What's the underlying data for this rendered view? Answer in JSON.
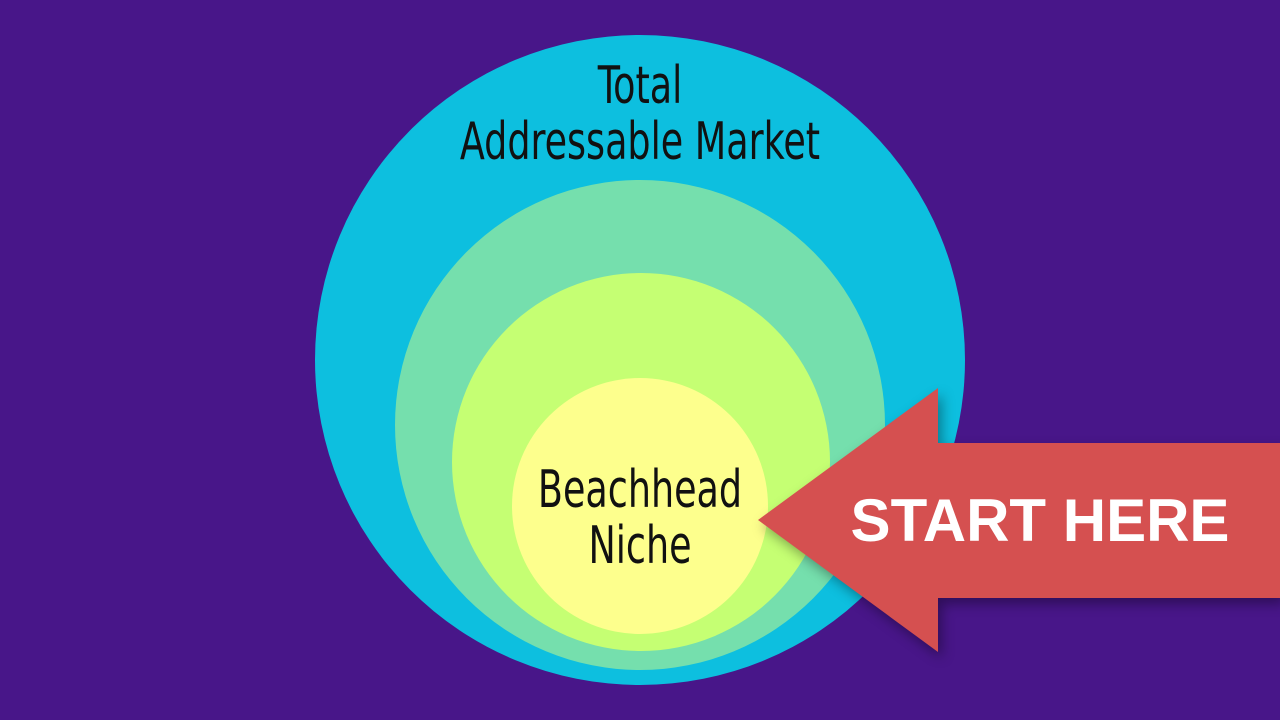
{
  "diagram": {
    "background_color": "#481689",
    "rings": [
      {
        "label": "Total Addressable Market",
        "lines": [
          "Total",
          "Addressable Market"
        ],
        "color": "#0dbfdf"
      },
      {
        "label": "",
        "color": "#75dfad"
      },
      {
        "label": "",
        "color": "#c5ff73"
      },
      {
        "label": "Beachhead Niche",
        "lines": [
          "Beachhead",
          "Niche"
        ],
        "color": "#fdff8d"
      }
    ],
    "arrow": {
      "text": "START HERE",
      "color": "#d55050",
      "text_color": "#ffffff"
    }
  }
}
